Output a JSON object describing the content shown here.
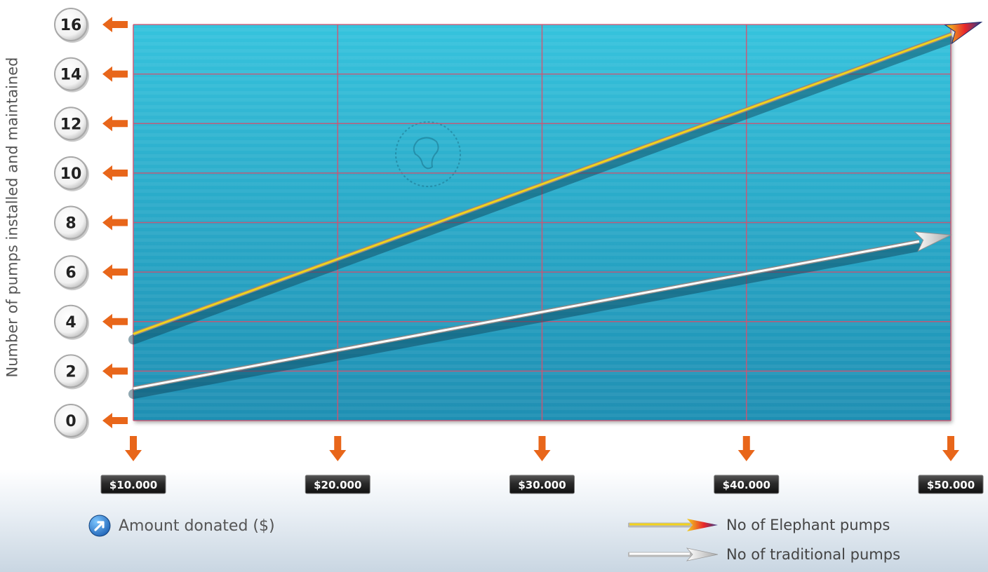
{
  "chart_data": {
    "type": "line",
    "title": "",
    "xlabel": "Amount donated ($)",
    "ylabel": "Number of pumps installed and maintained",
    "x_ticks": [
      "$10.000",
      "$20.000",
      "$30.000",
      "$40.000",
      "$50.000"
    ],
    "x": [
      10000,
      50000
    ],
    "y_ticks": [
      "0",
      "2",
      "4",
      "6",
      "8",
      "10",
      "12",
      "14",
      "16"
    ],
    "xlim": [
      10000,
      50000
    ],
    "ylim": [
      0,
      16
    ],
    "grid": true,
    "legend_position": "bottom-right",
    "series": [
      {
        "name": "No of Elephant pumps",
        "x": [
          10000,
          51500
        ],
        "values": [
          3.5,
          16.1
        ],
        "color": "#f2d21c"
      },
      {
        "name": "No of traditional pumps",
        "x": [
          10000,
          50000
        ],
        "values": [
          1.3,
          7.5
        ],
        "color": "#ffffff"
      }
    ]
  },
  "colors": {
    "plot_bg": "#2bb6d2",
    "grid": "#d9506e",
    "tick_arrow": "#e8661a",
    "label_box": "#2a2a2a"
  }
}
